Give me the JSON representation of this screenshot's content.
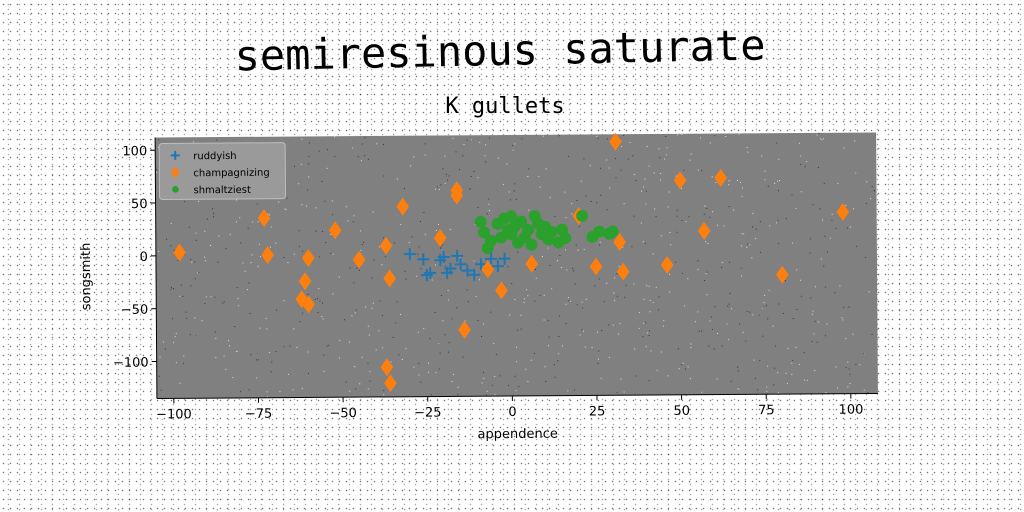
{
  "chart_data": {
    "type": "scatter",
    "title": "semiresinous saturate",
    "subtitle": "K gullets",
    "xlabel": "appendence",
    "ylabel": "songsmith",
    "xlim": [
      -105,
      108
    ],
    "ylim": [
      -135,
      112
    ],
    "x_ticks": [
      -100,
      -75,
      -50,
      -25,
      0,
      25,
      50,
      75,
      100
    ],
    "y_ticks": [
      -100,
      -50,
      0,
      50,
      100
    ],
    "grid": false,
    "legend_position": "top-left",
    "plot_background": "#808080",
    "series": [
      {
        "name": "ruddyish",
        "marker": "plus",
        "color": "#1f77b4",
        "points": [
          [
            -30,
            0
          ],
          [
            -26,
            -5
          ],
          [
            -25,
            -20
          ],
          [
            -24,
            -18
          ],
          [
            -21,
            -6
          ],
          [
            -20,
            -3
          ],
          [
            -19,
            -18
          ],
          [
            -18,
            -14
          ],
          [
            -16,
            -2
          ],
          [
            -15,
            -10
          ],
          [
            -13,
            -16
          ],
          [
            -11,
            -20
          ],
          [
            -9,
            -10
          ],
          [
            -6,
            -5
          ],
          [
            -4,
            -12
          ],
          [
            -2,
            -5
          ]
        ]
      },
      {
        "name": "champagnizing",
        "marker": "diamond",
        "color": "#ff7f0e",
        "points": [
          [
            -98,
            3
          ],
          [
            -73,
            35
          ],
          [
            -72,
            0
          ],
          [
            -60,
            -3
          ],
          [
            -61,
            -25
          ],
          [
            -62,
            -42
          ],
          [
            -60,
            -47
          ],
          [
            -52,
            23
          ],
          [
            -45,
            -5
          ],
          [
            -37,
            8
          ],
          [
            -36,
            -23
          ],
          [
            -37,
            -107
          ],
          [
            -36,
            -122
          ],
          [
            -32,
            45
          ],
          [
            -21,
            15
          ],
          [
            -16,
            55
          ],
          [
            -16,
            60
          ],
          [
            -14,
            -72
          ],
          [
            -7,
            -15
          ],
          [
            -3,
            -35
          ],
          [
            6,
            -10
          ],
          [
            20,
            35
          ],
          [
            25,
            -13
          ],
          [
            31,
            105
          ],
          [
            32,
            10
          ],
          [
            33,
            -18
          ],
          [
            46,
            -12
          ],
          [
            50,
            68
          ],
          [
            57,
            20
          ],
          [
            62,
            70
          ],
          [
            80,
            -22
          ],
          [
            98,
            37
          ]
        ]
      },
      {
        "name": "shmaltziest",
        "marker": "circle",
        "color": "#2ca02c",
        "points": [
          [
            -9,
            30
          ],
          [
            -8,
            20
          ],
          [
            -7,
            5
          ],
          [
            -6,
            12
          ],
          [
            -4,
            28
          ],
          [
            -3,
            15
          ],
          [
            -2,
            33
          ],
          [
            -1,
            22
          ],
          [
            0,
            18
          ],
          [
            0,
            35
          ],
          [
            1,
            25
          ],
          [
            2,
            10
          ],
          [
            3,
            30
          ],
          [
            4,
            15
          ],
          [
            5,
            22
          ],
          [
            6,
            8
          ],
          [
            7,
            35
          ],
          [
            8,
            28
          ],
          [
            9,
            18
          ],
          [
            10,
            25
          ],
          [
            11,
            13
          ],
          [
            12,
            20
          ],
          [
            14,
            10
          ],
          [
            15,
            22
          ],
          [
            16,
            14
          ],
          [
            21,
            35
          ],
          [
            24,
            15
          ],
          [
            26,
            20
          ],
          [
            29,
            18
          ],
          [
            30,
            20
          ]
        ]
      }
    ]
  }
}
